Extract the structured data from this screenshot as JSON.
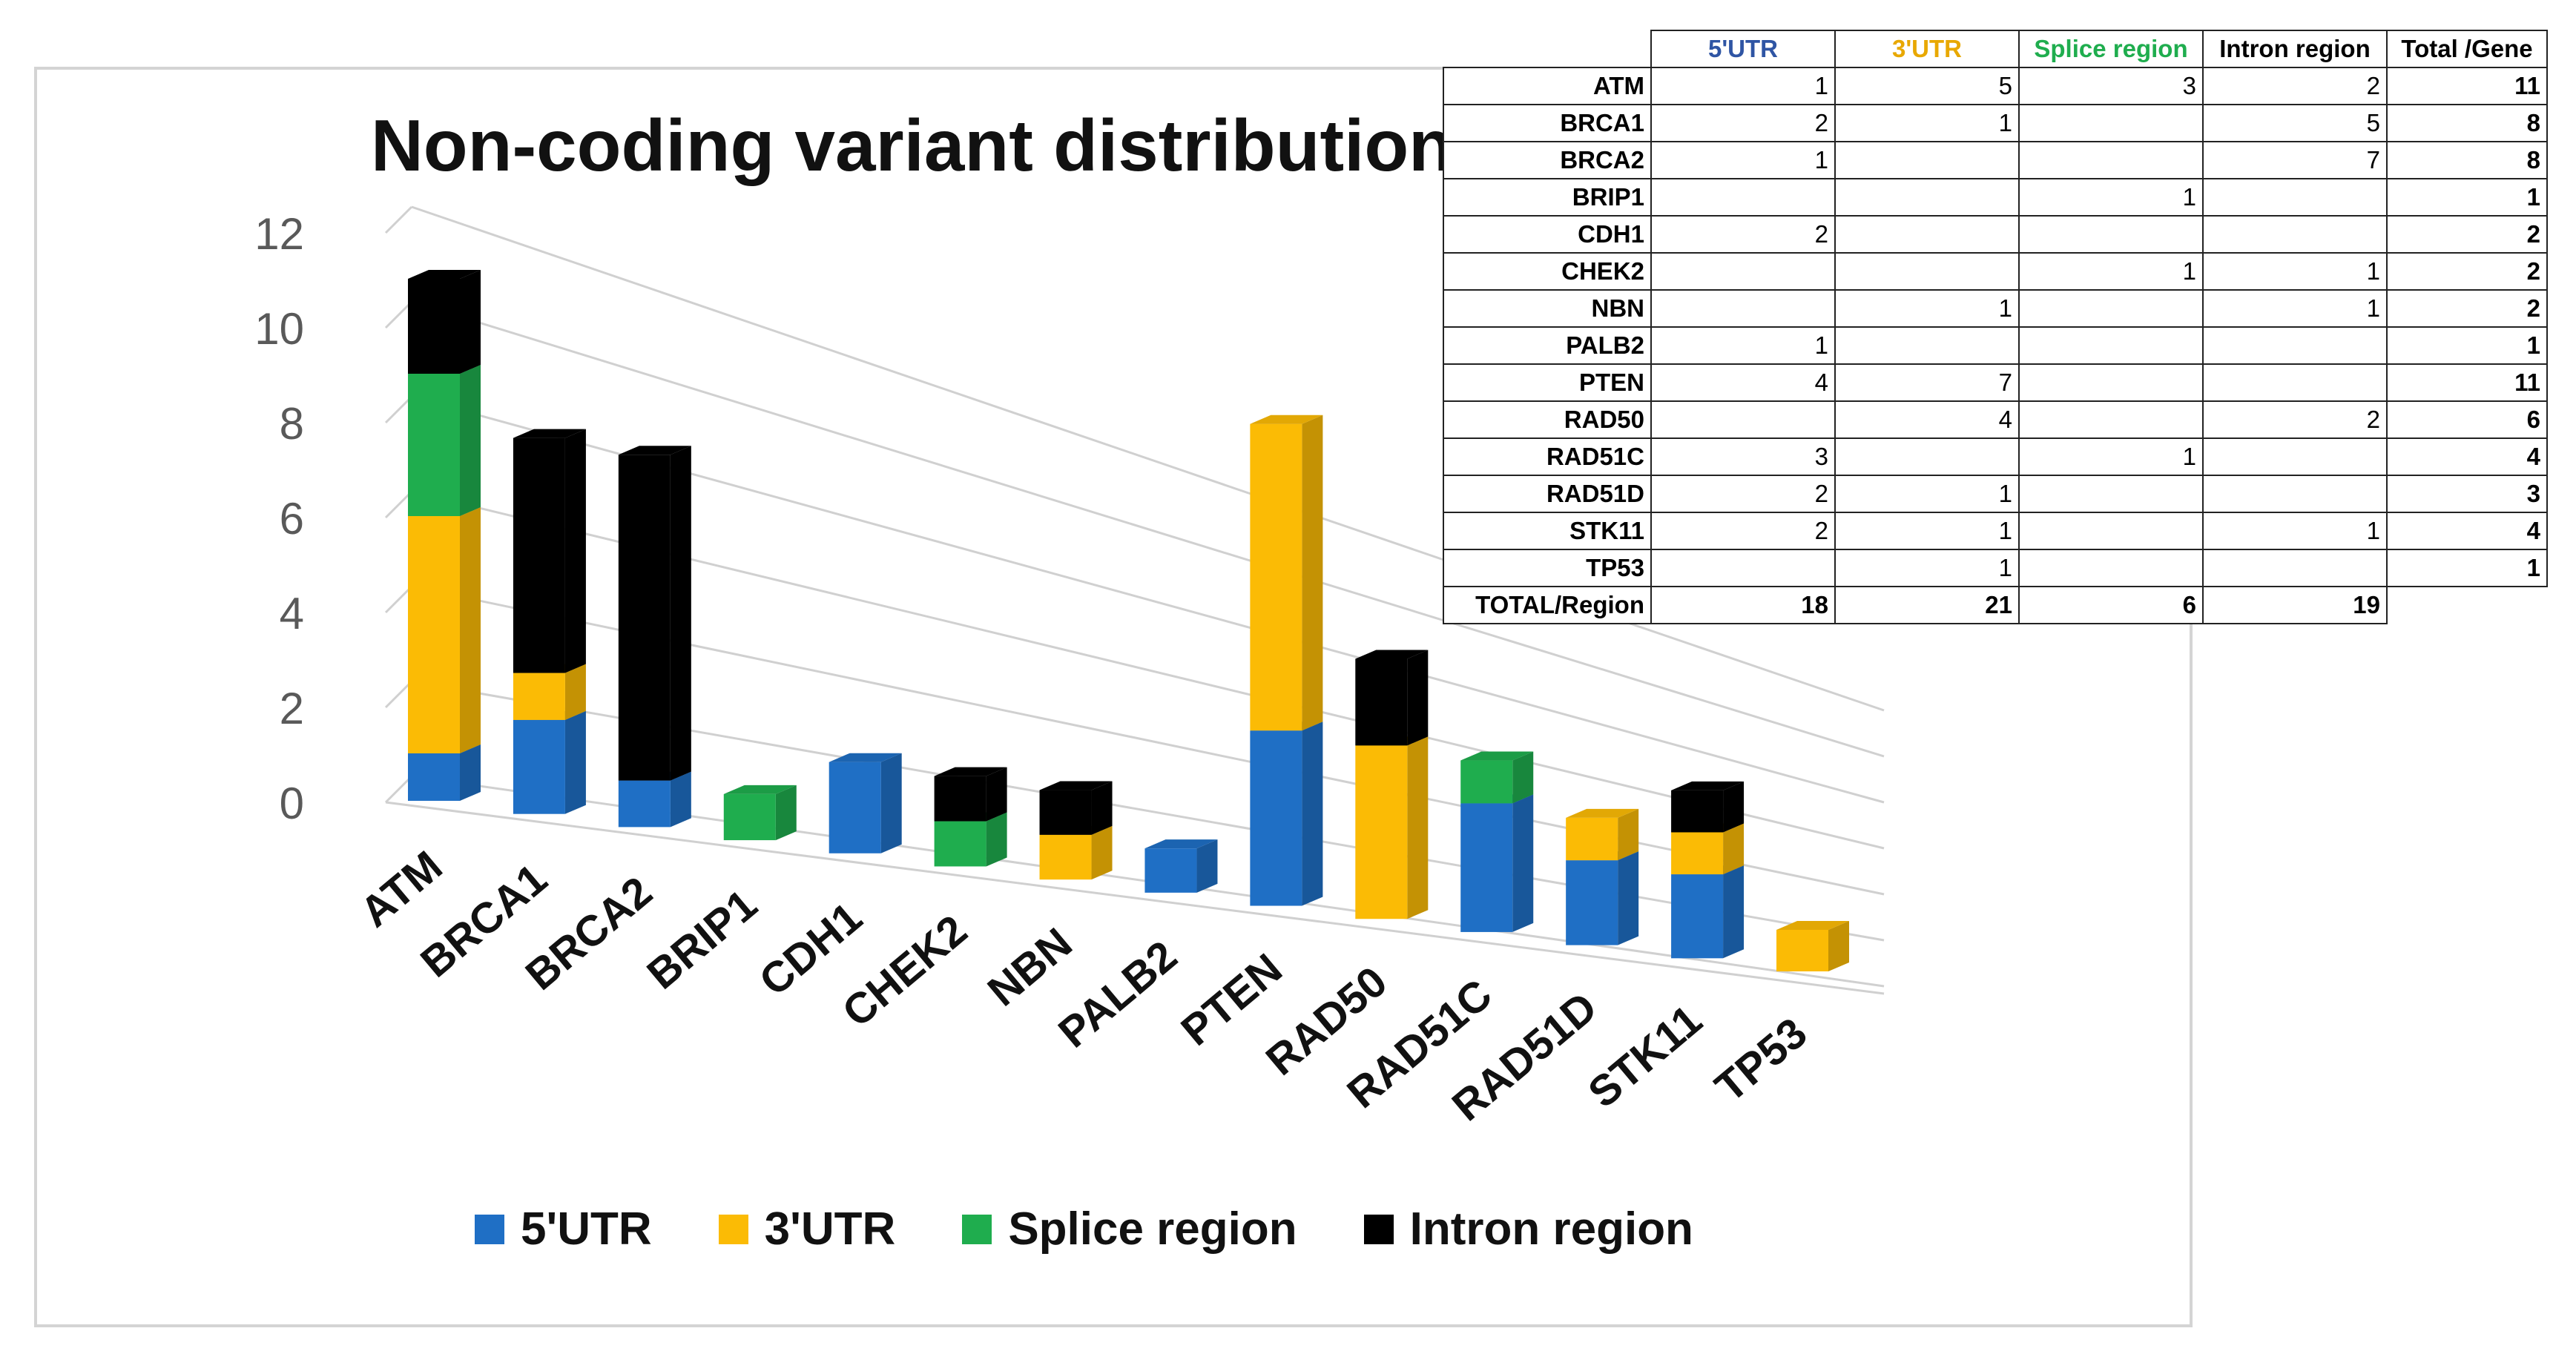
{
  "chart_data": {
    "type": "bar",
    "stacked": true,
    "title": "Non-coding variant distribution",
    "categories": [
      "ATM",
      "BRCA1",
      "BRCA2",
      "BRIP1",
      "CDH1",
      "CHEK2",
      "NBN",
      "PALB2",
      "PTEN",
      "RAD50",
      "RAD51C",
      "RAD51D",
      "STK11",
      "TP53"
    ],
    "series": [
      {
        "name": "5'UTR",
        "color": "#1f6fc5",
        "values": [
          1,
          2,
          1,
          0,
          2,
          0,
          0,
          1,
          4,
          0,
          3,
          2,
          2,
          0
        ]
      },
      {
        "name": "3'UTR",
        "color": "#fbbb05",
        "values": [
          5,
          1,
          0,
          0,
          0,
          0,
          1,
          0,
          7,
          4,
          0,
          1,
          1,
          1
        ]
      },
      {
        "name": "Splice region",
        "color": "#1fad4e",
        "values": [
          3,
          0,
          0,
          1,
          0,
          1,
          0,
          0,
          0,
          0,
          1,
          0,
          0,
          0
        ]
      },
      {
        "name": "Intron region",
        "color": "#000000",
        "values": [
          2,
          5,
          7,
          0,
          0,
          1,
          1,
          0,
          0,
          2,
          0,
          0,
          1,
          0
        ]
      }
    ],
    "yticks": [
      "0",
      "2",
      "4",
      "6",
      "8",
      "10",
      "12"
    ],
    "ylim": [
      0,
      12
    ],
    "legend_position": "bottom"
  },
  "table": {
    "headers": [
      "5'UTR",
      "3'UTR",
      "Splice region",
      "Intron region",
      "Total /Gene"
    ],
    "header_colors": [
      "#2f55a4",
      "#e8a800",
      "#1fad4e",
      "#000000",
      "#000000"
    ],
    "rows": [
      {
        "gene": "ATM",
        "cells": [
          "1",
          "5",
          "3",
          "2"
        ],
        "total": "11"
      },
      {
        "gene": "BRCA1",
        "cells": [
          "2",
          "1",
          "",
          "5"
        ],
        "total": "8"
      },
      {
        "gene": "BRCA2",
        "cells": [
          "1",
          "",
          "",
          "7"
        ],
        "total": "8"
      },
      {
        "gene": "BRIP1",
        "cells": [
          "",
          "",
          "1",
          ""
        ],
        "total": "1"
      },
      {
        "gene": "CDH1",
        "cells": [
          "2",
          "",
          "",
          ""
        ],
        "total": "2"
      },
      {
        "gene": "CHEK2",
        "cells": [
          "",
          "",
          "1",
          "1"
        ],
        "total": "2"
      },
      {
        "gene": "NBN",
        "cells": [
          "",
          "1",
          "",
          "1"
        ],
        "total": "2"
      },
      {
        "gene": "PALB2",
        "cells": [
          "1",
          "",
          "",
          ""
        ],
        "total": "1"
      },
      {
        "gene": "PTEN",
        "cells": [
          "4",
          "7",
          "",
          ""
        ],
        "total": "11"
      },
      {
        "gene": "RAD50",
        "cells": [
          "",
          "4",
          "",
          "2"
        ],
        "total": "6"
      },
      {
        "gene": "RAD51C",
        "cells": [
          "3",
          "",
          "1",
          ""
        ],
        "total": "4"
      },
      {
        "gene": "RAD51D",
        "cells": [
          "2",
          "1",
          "",
          ""
        ],
        "total": "3"
      },
      {
        "gene": "STK11",
        "cells": [
          "2",
          "1",
          "",
          "1"
        ],
        "total": "4"
      },
      {
        "gene": "TP53",
        "cells": [
          "",
          "1",
          "",
          ""
        ],
        "total": "1"
      }
    ],
    "footer": {
      "label": "TOTAL/Region",
      "cells": [
        "18",
        "21",
        "6",
        "19"
      ]
    }
  }
}
